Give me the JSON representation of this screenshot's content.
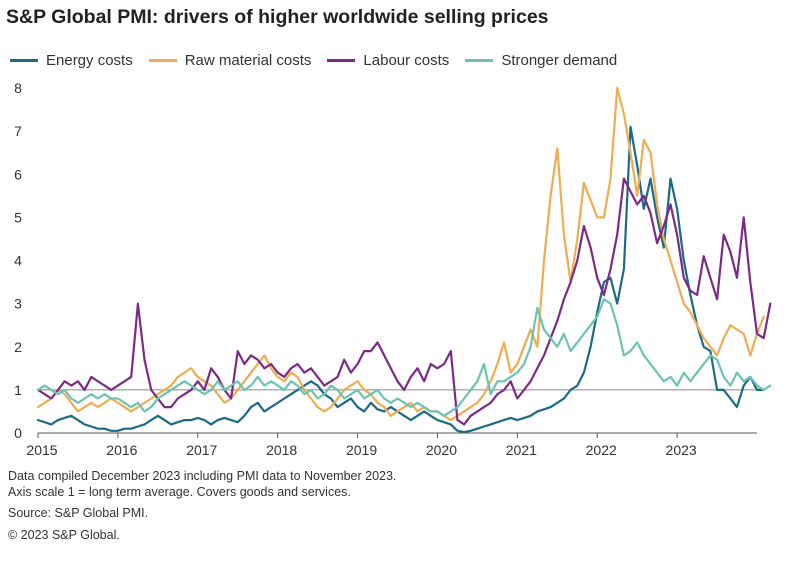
{
  "title": "S&P Global PMI: drivers of higher worldwide  selling prices",
  "notes": [
    "Data compiled December 2023 including PMI data to November 2023.",
    "Axis scale 1 = long term average. Covers goods and services."
  ],
  "source": "Source: S&P Global PMI.",
  "copyright": "© 2023 S&P Global.",
  "chart_data": {
    "type": "line",
    "title": "S&P Global PMI: drivers of higher worldwide  selling prices",
    "xlabel": "",
    "ylabel": "",
    "x_start": "2015-01",
    "x_end": "2023-11",
    "xticks": [
      "2015",
      "2016",
      "2017",
      "2018",
      "2019",
      "2020",
      "2021",
      "2022",
      "2023"
    ],
    "ylim": [
      0,
      8
    ],
    "yticks": [
      0,
      1,
      2,
      3,
      4,
      5,
      6,
      7,
      8
    ],
    "reference_line": 1,
    "grid": false,
    "legend_position": "top",
    "series": [
      {
        "name": "Energy costs",
        "color": "#1b6b86",
        "values": [
          0.3,
          0.25,
          0.2,
          0.3,
          0.35,
          0.4,
          0.3,
          0.2,
          0.15,
          0.1,
          0.1,
          0.05,
          0.05,
          0.1,
          0.1,
          0.15,
          0.2,
          0.3,
          0.4,
          0.3,
          0.2,
          0.25,
          0.3,
          0.3,
          0.35,
          0.3,
          0.2,
          0.3,
          0.35,
          0.3,
          0.25,
          0.4,
          0.6,
          0.7,
          0.5,
          0.6,
          0.7,
          0.8,
          0.9,
          1.0,
          1.1,
          1.2,
          1.1,
          0.9,
          0.8,
          0.6,
          0.7,
          0.8,
          0.6,
          0.5,
          0.7,
          0.55,
          0.5,
          0.6,
          0.5,
          0.4,
          0.3,
          0.4,
          0.5,
          0.4,
          0.3,
          0.25,
          0.2,
          0.05,
          0.02,
          0.05,
          0.1,
          0.15,
          0.2,
          0.25,
          0.3,
          0.35,
          0.3,
          0.35,
          0.4,
          0.5,
          0.55,
          0.6,
          0.7,
          0.8,
          1.0,
          1.1,
          1.4,
          2.0,
          2.8,
          3.5,
          3.6,
          3.0,
          3.8,
          7.1,
          6.2,
          5.2,
          5.9,
          5.0,
          4.3,
          5.9,
          5.2,
          4.0,
          3.2,
          2.5,
          2.0,
          1.9,
          1.0,
          1.0,
          0.8,
          0.6,
          1.1,
          1.3,
          1.0,
          1.0
        ]
      },
      {
        "name": "Raw material costs",
        "color": "#f0ac51",
        "values": [
          0.6,
          0.7,
          0.8,
          1.0,
          0.9,
          0.7,
          0.5,
          0.6,
          0.7,
          0.6,
          0.7,
          0.8,
          0.7,
          0.6,
          0.5,
          0.6,
          0.7,
          0.8,
          0.9,
          1.0,
          1.1,
          1.3,
          1.4,
          1.5,
          1.3,
          1.2,
          1.1,
          0.9,
          0.7,
          0.8,
          1.0,
          1.2,
          1.4,
          1.6,
          1.8,
          1.5,
          1.3,
          1.2,
          1.4,
          1.3,
          1.0,
          0.8,
          0.6,
          0.5,
          0.6,
          0.8,
          1.0,
          1.1,
          1.2,
          1.0,
          0.9,
          0.7,
          0.6,
          0.4,
          0.5,
          0.6,
          0.7,
          0.5,
          0.6,
          0.5,
          0.5,
          0.4,
          0.3,
          0.4,
          0.5,
          0.6,
          0.7,
          0.9,
          1.2,
          1.6,
          2.1,
          1.4,
          1.6,
          2.0,
          2.4,
          2.0,
          4.0,
          5.5,
          6.6,
          4.6,
          3.5,
          4.5,
          5.8,
          5.4,
          5.0,
          5.0,
          5.9,
          8.0,
          7.4,
          6.5,
          5.5,
          6.8,
          6.5,
          5.3,
          4.5,
          4.0,
          3.5,
          3.0,
          2.8,
          2.5,
          2.2,
          2.0,
          1.8,
          2.2,
          2.5,
          2.4,
          2.3,
          1.8,
          2.3,
          2.7
        ]
      },
      {
        "name": "Labour costs",
        "color": "#7b2b85",
        "values": [
          1.0,
          0.9,
          0.8,
          1.0,
          1.2,
          1.1,
          1.2,
          1.0,
          1.3,
          1.2,
          1.1,
          1.0,
          1.1,
          1.2,
          1.3,
          3.0,
          1.7,
          1.0,
          0.8,
          0.6,
          0.6,
          0.8,
          0.9,
          1.0,
          1.2,
          1.0,
          1.5,
          1.3,
          1.0,
          0.8,
          1.9,
          1.6,
          1.8,
          1.7,
          1.5,
          1.6,
          1.4,
          1.3,
          1.5,
          1.6,
          1.4,
          1.5,
          1.3,
          1.1,
          1.2,
          1.3,
          1.7,
          1.4,
          1.6,
          1.9,
          1.9,
          2.1,
          1.8,
          1.5,
          1.2,
          1.0,
          1.3,
          1.5,
          1.2,
          1.6,
          1.5,
          1.6,
          1.9,
          0.3,
          0.2,
          0.4,
          0.5,
          0.6,
          0.7,
          0.9,
          1.0,
          1.2,
          0.8,
          1.0,
          1.2,
          1.5,
          1.8,
          2.2,
          2.6,
          3.1,
          3.5,
          4.0,
          4.8,
          4.3,
          3.6,
          3.2,
          3.8,
          4.6,
          5.9,
          5.6,
          5.3,
          5.5,
          5.1,
          4.4,
          4.8,
          5.3,
          4.6,
          3.6,
          3.3,
          3.2,
          4.1,
          3.6,
          3.1,
          4.6,
          4.2,
          3.6,
          5.0,
          3.5,
          2.3,
          2.2,
          3.0
        ]
      },
      {
        "name": "Stronger demand",
        "color": "#6cc3b1",
        "values": [
          1.0,
          1.1,
          1.0,
          0.9,
          1.0,
          0.8,
          0.7,
          0.8,
          0.9,
          0.8,
          0.9,
          0.8,
          0.8,
          0.7,
          0.6,
          0.7,
          0.5,
          0.6,
          0.8,
          0.9,
          1.0,
          1.1,
          1.2,
          1.1,
          1.0,
          0.9,
          1.0,
          1.2,
          1.0,
          1.1,
          1.2,
          1.0,
          1.1,
          1.3,
          1.1,
          1.2,
          1.1,
          1.0,
          1.2,
          1.1,
          0.9,
          1.0,
          0.8,
          0.9,
          1.1,
          1.0,
          0.8,
          0.9,
          1.0,
          0.8,
          0.9,
          1.0,
          0.8,
          0.7,
          0.8,
          0.7,
          0.6,
          0.7,
          0.6,
          0.5,
          0.5,
          0.4,
          0.5,
          0.6,
          0.8,
          1.0,
          1.2,
          1.6,
          0.9,
          1.2,
          1.2,
          1.3,
          1.4,
          1.6,
          2.0,
          2.9,
          2.4,
          2.2,
          2.0,
          2.3,
          1.9,
          2.1,
          2.3,
          2.5,
          2.7,
          3.1,
          3.0,
          2.5,
          1.8,
          1.9,
          2.1,
          1.8,
          1.6,
          1.4,
          1.2,
          1.3,
          1.1,
          1.4,
          1.2,
          1.4,
          1.6,
          1.8,
          1.7,
          1.3,
          1.1,
          1.4,
          1.2,
          1.3,
          1.1,
          1.0,
          1.1
        ]
      }
    ]
  }
}
